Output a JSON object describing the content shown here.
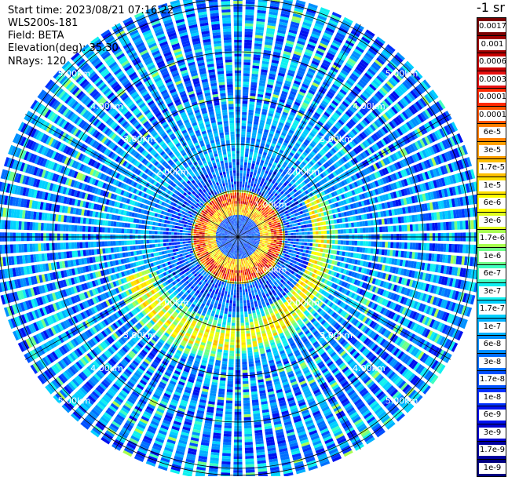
{
  "info": {
    "start_time": "Start time: 2023/08/21 07:16:22",
    "instrument": "WLS200s-181",
    "field": "Field: BETA",
    "elevation": "Elevation(deg): 35.30",
    "nrays": "NRays: 120"
  },
  "colorbar": {
    "units": "-1 sr",
    "labels": [
      "0.0017",
      "0.001",
      "0.0006",
      "0.0003",
      "0.00017",
      "0.0001",
      "6e-5",
      "3e-5",
      "1.7e-5",
      "1e-5",
      "6e-6",
      "3e-6",
      "1.7e-6",
      "1e-6",
      "6e-7",
      "3e-7",
      "1.7e-7",
      "1e-7",
      "6e-8",
      "3e-8",
      "1.7e-8",
      "1e-8",
      "6e-9",
      "3e-9",
      "1.7e-9",
      "1e-9"
    ],
    "colors": [
      "#7a0000",
      "#a00000",
      "#c80000",
      "#e81010",
      "#ff2a00",
      "#ff5500",
      "#ff8000",
      "#ffa000",
      "#ffc000",
      "#ffe000",
      "#ffff00",
      "#e0ff20",
      "#a8ff50",
      "#70ff88",
      "#40ffc0",
      "#10f0f0",
      "#00d0ff",
      "#00b0ff",
      "#0090ff",
      "#0070ff",
      "#0050ff",
      "#0030ff",
      "#0010f0",
      "#0000d0",
      "#0000a0",
      "#000080"
    ]
  },
  "chart_data": {
    "type": "heatmap",
    "title": "",
    "projection": "polar PPI",
    "field": "BETA",
    "units": "-1 sr",
    "elevation_deg": 35.3,
    "n_rays": 120,
    "range_rings_km": [
      1.0,
      2.0,
      3.0,
      4.0,
      5.0
    ],
    "ring_labels": [
      "1.00km",
      "2.00km",
      "3.00km",
      "4.00km",
      "5.00km"
    ],
    "max_range_km": 5.3,
    "spokes_deg": [
      0,
      30,
      60,
      90,
      120,
      150,
      180,
      210,
      240,
      270,
      300,
      330
    ],
    "scale": "log",
    "value_range": [
      1e-09,
      0.0017
    ],
    "features": [
      {
        "region": "inner ring",
        "range_km": [
          0.5,
          1.0
        ],
        "level": "3e-5 to 0.0006"
      },
      {
        "region": "enhanced arc south-east",
        "range_km": [
          1.5,
          2.8
        ],
        "level": "6e-6 to 3e-5"
      },
      {
        "region": "background",
        "range_km": [
          2.0,
          5.3
        ],
        "level": "1e-8 to 3e-7"
      }
    ]
  }
}
